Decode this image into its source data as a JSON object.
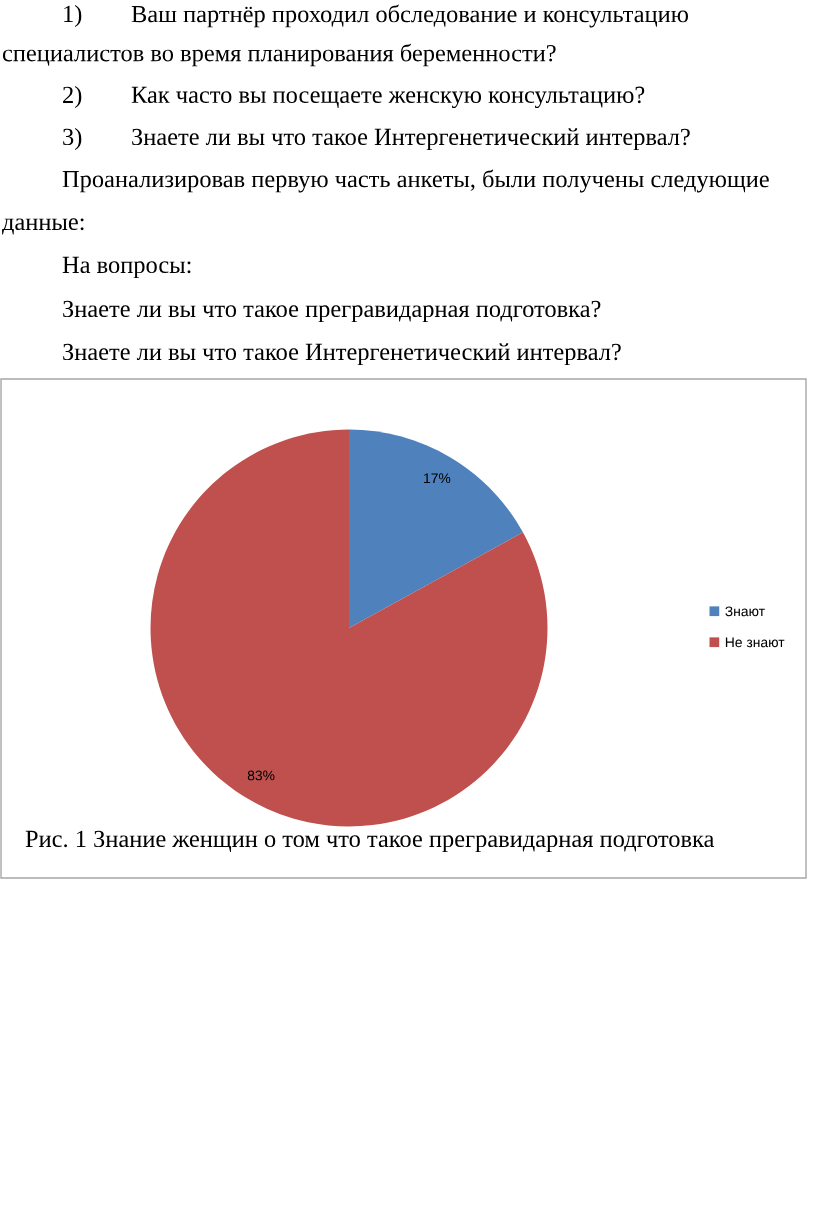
{
  "chart_data": {
    "type": "pie",
    "title": "Рис. 1 Знание женщин о том что такое прегравидарная подготовка",
    "categories": [
      "Знают",
      "Не знают"
    ],
    "values": [
      17,
      83
    ],
    "colors": [
      "#4f81bd",
      "#c0504d"
    ],
    "value_labels": [
      "17%",
      "83%"
    ],
    "legend": "right",
    "annotations": [
      "1) Ваш партнёр проходил обследование и консультацию",
      "специалистов во время планирования беременности?",
      "2) Как часто вы посещаете женскую консультацию?",
      "3) Знаете ли вы что такое Интергенетический интервал?",
      "Проанализировав первую часть анкеты, были получены следующие",
      "данные:",
      "На вопросы:",
      "Знаете ли вы что такое прегравидарная подготовка?",
      "Знаете ли вы что такое Интергенетический интервал?"
    ]
  }
}
